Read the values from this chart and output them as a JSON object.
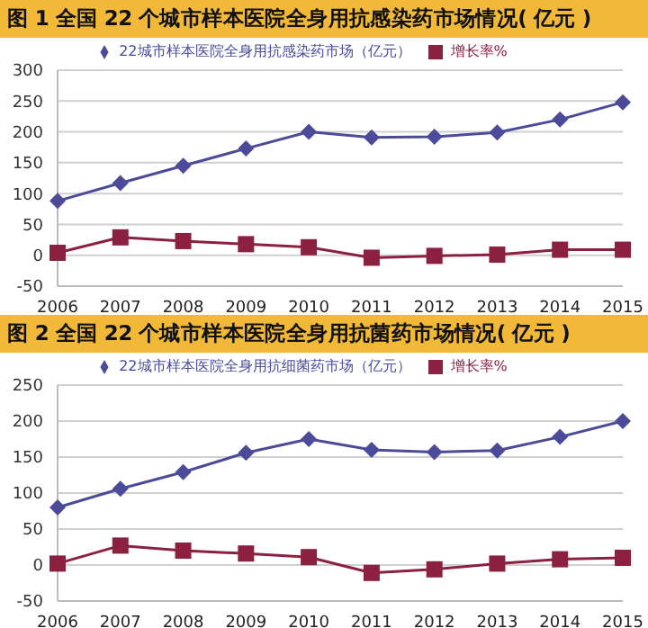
{
  "chart_data": [
    {
      "type": "line",
      "title": "图 1  全国 22 个城市样本医院全身用抗感染药市场情况( 亿元 )",
      "categories": [
        "2006",
        "2007",
        "2008",
        "2009",
        "2010",
        "2011",
        "2012",
        "2013",
        "2014",
        "2015"
      ],
      "series": [
        {
          "name": "22城市样本医院全身用抗感染药市场（亿元）",
          "color": "#4b4b9a",
          "marker": "diamond",
          "values": [
            88,
            117,
            145,
            173,
            200,
            191,
            192,
            199,
            220,
            248
          ]
        },
        {
          "name": "增长率%",
          "color": "#8b2040",
          "marker": "square",
          "values": [
            4,
            29,
            23,
            18,
            13,
            -4,
            -1,
            1,
            9,
            9
          ]
        }
      ],
      "ylim": [
        -50,
        300
      ],
      "yticks": [
        -50,
        0,
        50,
        100,
        150,
        200,
        250,
        300
      ],
      "grid": "y",
      "legend": "top"
    },
    {
      "type": "line",
      "title": "图 2  全国 22 个城市样本医院全身用抗菌药市场情况( 亿元 )",
      "categories": [
        "2006",
        "2007",
        "2008",
        "2009",
        "2010",
        "2011",
        "2012",
        "2013",
        "2014",
        "2015"
      ],
      "series": [
        {
          "name": "22城市样本医院全身用抗细菌药市场（亿元）",
          "color": "#4b4b9a",
          "marker": "diamond",
          "values": [
            80,
            106,
            129,
            156,
            175,
            160,
            157,
            159,
            178,
            200
          ]
        },
        {
          "name": "增长率%",
          "color": "#8b2040",
          "marker": "square",
          "values": [
            2,
            27,
            20,
            16,
            11,
            -11,
            -6,
            2,
            8,
            10
          ]
        }
      ],
      "ylim": [
        -50,
        250
      ],
      "yticks": [
        -50,
        0,
        50,
        100,
        150,
        200,
        250
      ],
      "grid": "y",
      "legend": "top"
    }
  ]
}
